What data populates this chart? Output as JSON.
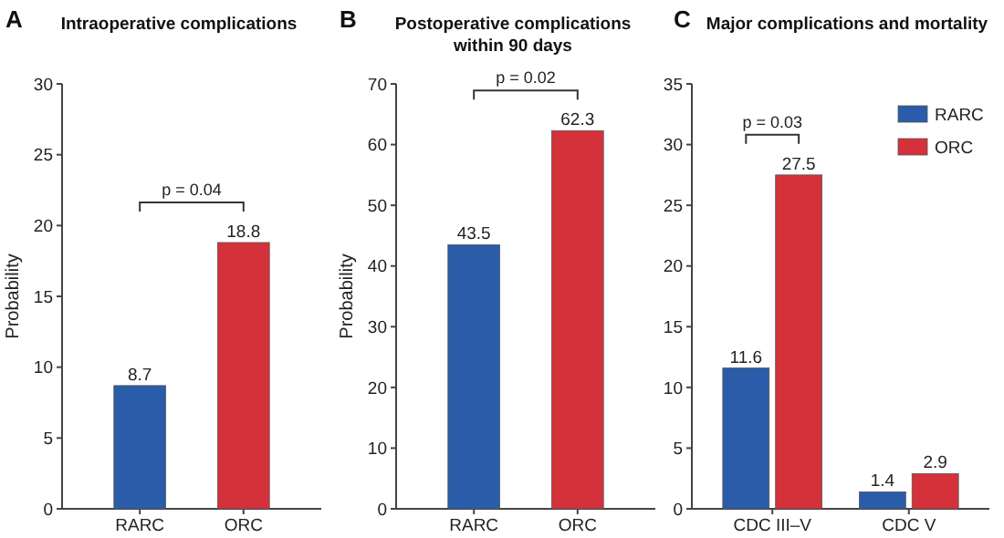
{
  "chart_data": [
    {
      "type": "bar",
      "title": "Intraoperative complications",
      "ylabel": "Probability",
      "categories": [
        "RARC",
        "ORC"
      ],
      "values": [
        8.7,
        18.8
      ],
      "colors": [
        "#2a5caa",
        "#d4313a"
      ],
      "ylim": [
        0,
        30
      ],
      "yticks": [
        0,
        5,
        10,
        15,
        20,
        25,
        30
      ],
      "data_labels": true,
      "annotations": [
        "A",
        "p = 0.04"
      ]
    },
    {
      "type": "bar",
      "title": "Postoperative complications within 90 days",
      "ylabel": "Probability",
      "categories": [
        "RARC",
        "ORC"
      ],
      "values": [
        43.5,
        62.3
      ],
      "colors": [
        "#2a5caa",
        "#d4313a"
      ],
      "ylim": [
        0,
        70
      ],
      "yticks": [
        0,
        10,
        20,
        30,
        40,
        50,
        60,
        70
      ],
      "data_labels": true,
      "annotations": [
        "B",
        "p = 0.02"
      ]
    },
    {
      "type": "bar",
      "title": "Major complications and mortality",
      "categories": [
        "CDC III–V",
        "CDC V"
      ],
      "series": [
        {
          "name": "RARC",
          "color": "#2a5caa",
          "values": [
            11.6,
            1.4
          ]
        },
        {
          "name": "ORC",
          "color": "#d4313a",
          "values": [
            27.5,
            2.9
          ]
        }
      ],
      "ylim": [
        0,
        35
      ],
      "yticks": [
        0,
        5,
        10,
        15,
        20,
        25,
        30,
        35
      ],
      "data_labels": true,
      "legend": "top right",
      "annotations": [
        "C",
        "p = 0.03"
      ]
    }
  ]
}
